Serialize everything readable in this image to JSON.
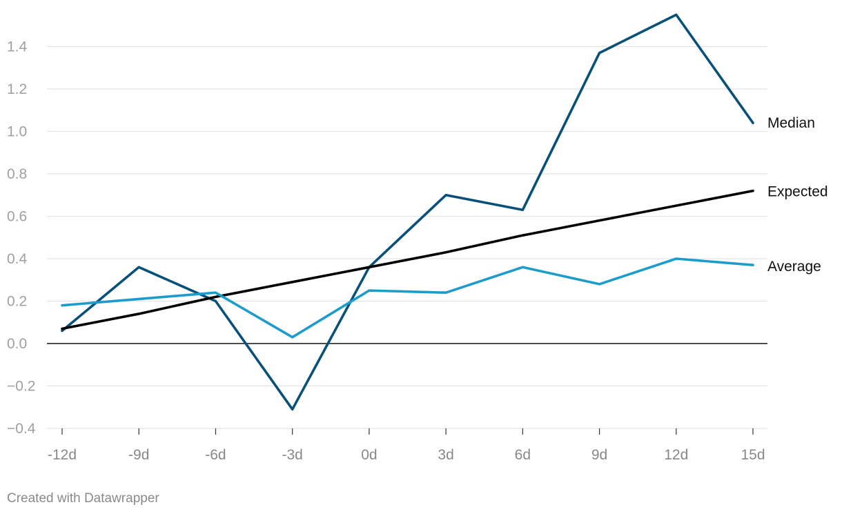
{
  "footer": {
    "credit": "Created with Datawrapper"
  },
  "chart_data": {
    "type": "line",
    "x": [
      "-12d",
      "-9d",
      "-6d",
      "-3d",
      "0d",
      "3d",
      "6d",
      "9d",
      "12d",
      "15d"
    ],
    "yticks": [
      "1.4",
      "1.2",
      "1.0",
      "0.8",
      "0.6",
      "0.4",
      "0.2",
      "0.0",
      "−0.2",
      "−0.4"
    ],
    "ytick_values": [
      1.4,
      1.2,
      1.0,
      0.8,
      0.6,
      0.4,
      0.2,
      0.0,
      -0.2,
      -0.4
    ],
    "ylim": [
      -0.4,
      1.55
    ],
    "grid": true,
    "legend": "direct labels at right end of lines",
    "series": [
      {
        "name": "Median",
        "color": "#07507a",
        "values": [
          0.06,
          0.36,
          0.2,
          -0.31,
          0.36,
          0.7,
          0.63,
          1.37,
          1.55,
          1.04
        ]
      },
      {
        "name": "Expected",
        "color": "#000000",
        "values": [
          0.07,
          0.14,
          0.22,
          0.29,
          0.36,
          0.43,
          0.51,
          0.58,
          0.65,
          0.72
        ]
      },
      {
        "name": "Average",
        "color": "#1c9ccb",
        "values": [
          0.18,
          0.21,
          0.24,
          0.03,
          0.25,
          0.24,
          0.36,
          0.28,
          0.4,
          0.37
        ]
      }
    ]
  }
}
